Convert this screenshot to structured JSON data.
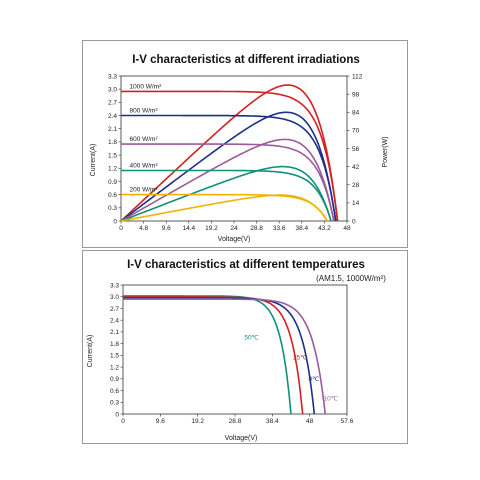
{
  "chart_data": [
    {
      "type": "line",
      "title": "I-V characteristics at different irradiations",
      "xlabel": "Voltage(V)",
      "ylabel": "Current(A)",
      "y2label": "Power(W)",
      "xlim": [
        0,
        48
      ],
      "ylim": [
        0,
        3.3
      ],
      "y2lim": [
        0,
        112
      ],
      "xticks": [
        "0",
        "4.8",
        "9.6",
        "14.4",
        "19.2",
        "24",
        "28.8",
        "33.6",
        "38.4",
        "43.2",
        "48"
      ],
      "yticks": [
        "0",
        "0.3",
        "0.6",
        "0.9",
        "1.2",
        "1.5",
        "1.8",
        "2.1",
        "2.4",
        "2.7",
        "3.0",
        "3.3"
      ],
      "y2ticks": [
        "0",
        "14",
        "28",
        "42",
        "56",
        "70",
        "84",
        "98",
        "112"
      ],
      "grid": false,
      "series": [
        {
          "name": "1000 W/m²",
          "color": "#d42020",
          "isc": 2.95,
          "voc": 46.0,
          "vmp": 38.0,
          "pmax": 105
        },
        {
          "name": "800 W/m²",
          "color": "#1c2f8a",
          "isc": 2.4,
          "voc": 45.6,
          "vmp": 37.5,
          "pmax": 84
        },
        {
          "name": "600 W/m²",
          "color": "#9a5b9a",
          "isc": 1.75,
          "voc": 45.2,
          "vmp": 37.5,
          "pmax": 63
        },
        {
          "name": "400 W/m²",
          "color": "#10907a",
          "isc": 1.15,
          "voc": 44.6,
          "vmp": 37.5,
          "pmax": 42
        },
        {
          "name": "200 W/m²",
          "color": "#f0b400",
          "isc": 0.6,
          "voc": 43.8,
          "vmp": 37.0,
          "pmax": 20
        }
      ]
    },
    {
      "type": "line",
      "title": "I-V characteristics at different temperatures",
      "subtitle": "(AM1.5, 1000W/m²)",
      "xlabel": "Voltage(V)",
      "ylabel": "Current(A)",
      "xlim": [
        0,
        57.6
      ],
      "ylim": [
        0,
        3.3
      ],
      "xticks": [
        "0",
        "9.6",
        "19.2",
        "28.8",
        "38.4",
        "48",
        "57.6"
      ],
      "yticks": [
        "0",
        "0.3",
        "0.6",
        "0.9",
        "1.2",
        "1.5",
        "1.8",
        "2.1",
        "2.4",
        "2.7",
        "3.0",
        "3.3"
      ],
      "grid": false,
      "series": [
        {
          "name": "50℃",
          "color": "#10907a",
          "isc": 3.02,
          "voc": 43.2
        },
        {
          "name": "25℃",
          "color": "#d42020",
          "isc": 2.99,
          "voc": 46.2
        },
        {
          "name": "0℃",
          "color": "#1c2f8a",
          "isc": 2.96,
          "voc": 49.2
        },
        {
          "name": "-10℃",
          "color": "#9a5b9a",
          "isc": 2.94,
          "voc": 52.0
        }
      ]
    }
  ]
}
